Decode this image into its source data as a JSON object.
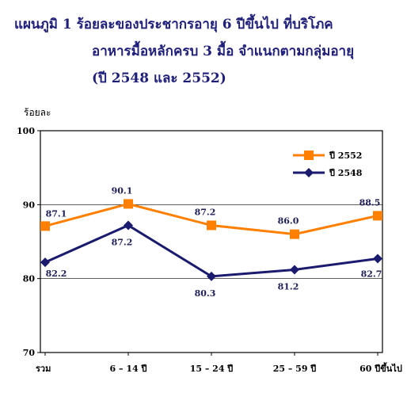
{
  "title": {
    "line1": "แผนภูมิ  1  ร้อยละของประชากรอายุ 6 ปีขึ้นไป ที่บริโภค",
    "line2": "อาหารมื้อหลักครบ  3 มื้อ จำแนกตามกลุ่มอายุ",
    "line3": "(ปี 2548 และ 2552)"
  },
  "chart_data": {
    "type": "line",
    "ylabel": "ร้อยละ",
    "ylim": [
      70,
      100
    ],
    "yticks": [
      70,
      80,
      90,
      100
    ],
    "categories": [
      "รวม",
      "6 – 14 ปี",
      "15 – 24 ปี",
      "25 – 59 ปี",
      "60 ปีขึ้นไป"
    ],
    "series": [
      {
        "name": "ปี 2552",
        "color": "#ff7f00",
        "marker": "square",
        "values": [
          87.1,
          90.1,
          87.2,
          86.0,
          88.5
        ]
      },
      {
        "name": "ปี 2548",
        "color": "#1a1a6e",
        "marker": "diamond",
        "values": [
          82.2,
          87.2,
          80.3,
          81.2,
          82.7
        ]
      }
    ],
    "grid": true,
    "legend": "top-right"
  }
}
